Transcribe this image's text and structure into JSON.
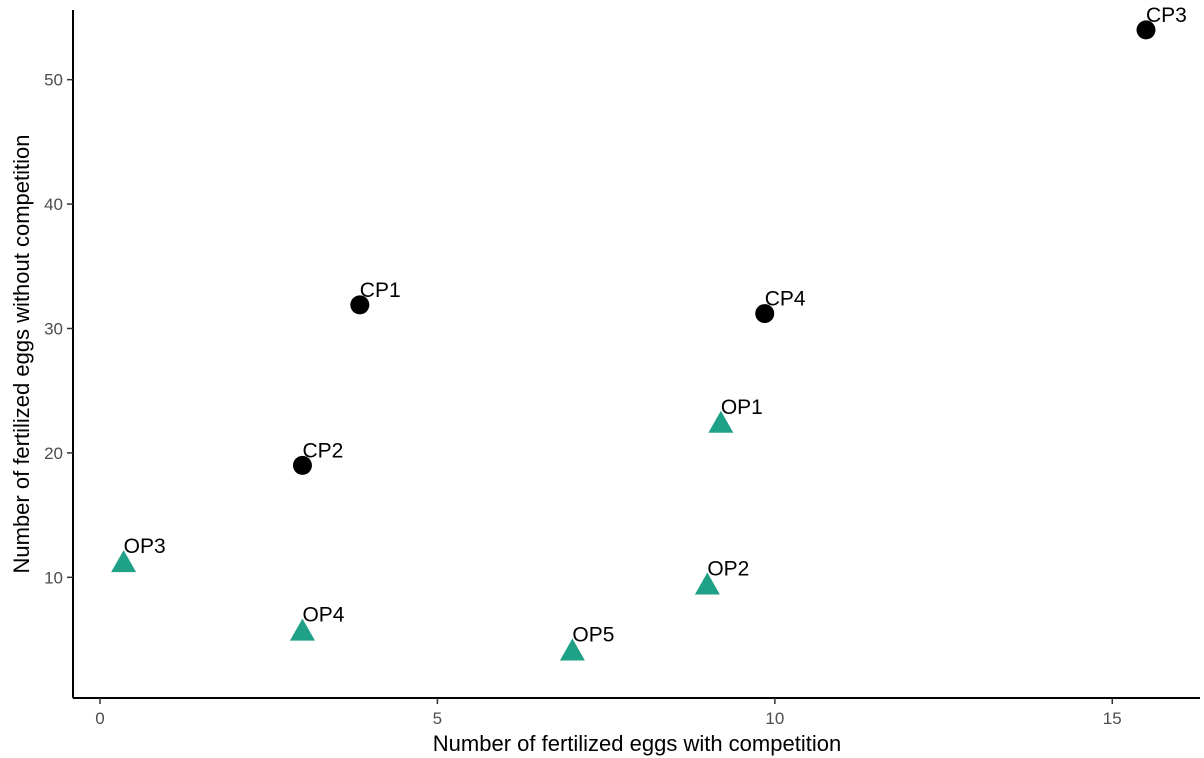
{
  "chart_data": {
    "type": "scatter",
    "title": "",
    "xlabel": "Number of fertilized eggs with competition",
    "ylabel": "Number of fertilized eggs without competition",
    "xlim": [
      -0.4,
      16.3
    ],
    "ylim": [
      0.3,
      55.6
    ],
    "xticks": [
      0,
      5,
      10,
      15
    ],
    "yticks": [
      10,
      20,
      30,
      40,
      50
    ],
    "grid": false,
    "legend": "none",
    "series": [
      {
        "shape": "circle",
        "color": "#000000",
        "points": [
          {
            "label": "CP1",
            "x": 3.85,
            "y": 31.9
          },
          {
            "label": "CP2",
            "x": 3.0,
            "y": 19.0
          },
          {
            "label": "CP3",
            "x": 15.5,
            "y": 54.0
          },
          {
            "label": "CP4",
            "x": 9.85,
            "y": 31.2
          }
        ]
      },
      {
        "shape": "triangle",
        "color": "#1fa187",
        "points": [
          {
            "label": "OP1",
            "x": 9.2,
            "y": 22.5
          },
          {
            "label": "OP2",
            "x": 9.0,
            "y": 9.5
          },
          {
            "label": "OP3",
            "x": 0.35,
            "y": 11.3
          },
          {
            "label": "OP4",
            "x": 3.0,
            "y": 5.8
          },
          {
            "label": "OP5",
            "x": 7.0,
            "y": 4.2
          }
        ]
      }
    ]
  }
}
